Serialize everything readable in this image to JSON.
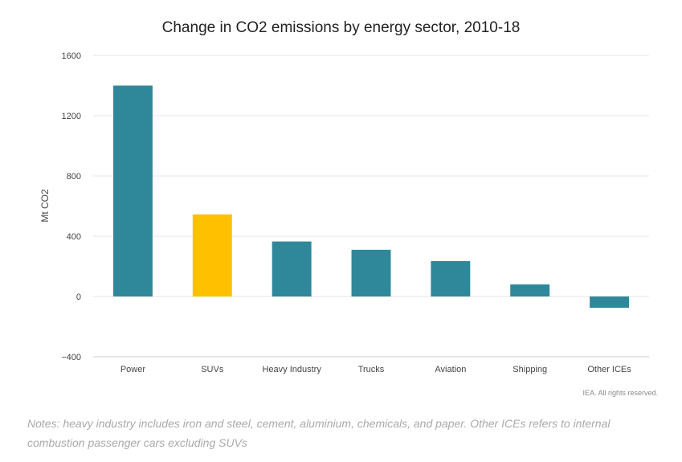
{
  "chart_data": {
    "type": "bar",
    "title": "Change in CO2 emissions by energy sector, 2010-18",
    "ylabel": "Mt CO2",
    "xlabel": "",
    "categories": [
      "Power",
      "SUVs",
      "Heavy Industry",
      "Trucks",
      "Aviation",
      "Shipping",
      "Other ICEs"
    ],
    "values": [
      1400,
      545,
      365,
      310,
      235,
      80,
      -75
    ],
    "ylim": [
      -400,
      1600
    ],
    "yticks": [
      -400,
      0,
      400,
      800,
      1200,
      1600
    ],
    "ytick_labels": [
      "−400",
      "0",
      "400",
      "800",
      "1200",
      "1600"
    ],
    "grid": true,
    "colors": {
      "default": "#2f889a",
      "highlight": "#ffc000",
      "highlight_category": "SUVs"
    }
  },
  "copyright": "IEA. All rights reserved.",
  "notes": "Notes: heavy industry includes iron and steel, cement, aluminium, chemicals, and paper. Other ICEs refers to internal combustion passenger cars excluding SUVs"
}
